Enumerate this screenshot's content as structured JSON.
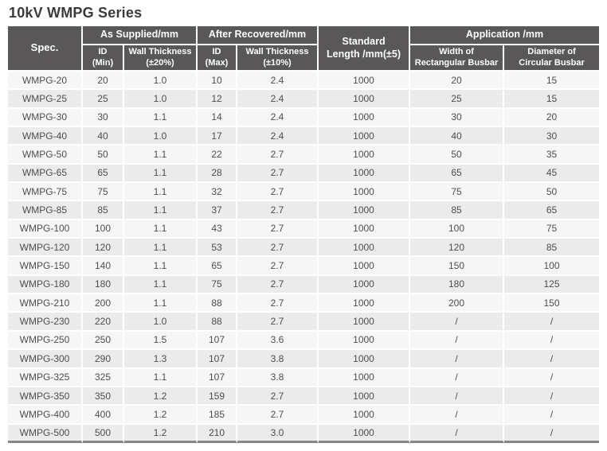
{
  "title": "10kV WMPG Series",
  "colors": {
    "header_bg": "#595757",
    "header_text": "#ffffff",
    "row_light": "#f6f6f6",
    "row_dark": "#ebebec",
    "body_text": "#4e4d4d",
    "bottom_border": "#868686"
  },
  "table": {
    "header": {
      "spec": "Spec.",
      "as_supplied": "As Supplied/mm",
      "after_recovered": "After Recovered/mm",
      "standard_length": "Standard\nLength /mm(±5)",
      "application": "Application /mm",
      "id_min": "ID\n(Min)",
      "wall_thickness_20": "Wall Thickness\n(±20%)",
      "id_max": "ID\n(Max)",
      "wall_thickness_10": "Wall Thickness\n(±10%)",
      "width_rect_busbar": "Width of\nRectangular Busbar",
      "diameter_circ_busbar": "Diameter of\nCircular Busbar"
    },
    "column_keys": [
      "spec",
      "id-min",
      "wall-thickness-20",
      "id-max",
      "wall-thickness-10",
      "standard-length",
      "width-rect-busbar",
      "diameter-circ-busbar"
    ],
    "rows": [
      [
        "WMPG-20",
        "20",
        "1.0",
        "10",
        "2.4",
        "1000",
        "20",
        "15"
      ],
      [
        "WMPG-25",
        "25",
        "1.0",
        "12",
        "2.4",
        "1000",
        "25",
        "15"
      ],
      [
        "WMPG-30",
        "30",
        "1.1",
        "14",
        "2.4",
        "1000",
        "30",
        "20"
      ],
      [
        "WMPG-40",
        "40",
        "1.0",
        "17",
        "2.4",
        "1000",
        "40",
        "30"
      ],
      [
        "WMPG-50",
        "50",
        "1.1",
        "22",
        "2.7",
        "1000",
        "50",
        "35"
      ],
      [
        "WMPG-65",
        "65",
        "1.1",
        "28",
        "2.7",
        "1000",
        "65",
        "45"
      ],
      [
        "WMPG-75",
        "75",
        "1.1",
        "32",
        "2.7",
        "1000",
        "75",
        "50"
      ],
      [
        "WMPG-85",
        "85",
        "1.1",
        "37",
        "2.7",
        "1000",
        "85",
        "65"
      ],
      [
        "WMPG-100",
        "100",
        "1.1",
        "43",
        "2.7",
        "1000",
        "100",
        "75"
      ],
      [
        "WMPG-120",
        "120",
        "1.1",
        "53",
        "2.7",
        "1000",
        "120",
        "85"
      ],
      [
        "WMPG-150",
        "140",
        "1.1",
        "65",
        "2.7",
        "1000",
        "150",
        "100"
      ],
      [
        "WMPG-180",
        "180",
        "1.1",
        "75",
        "2.7",
        "1000",
        "180",
        "125"
      ],
      [
        "WMPG-210",
        "200",
        "1.1",
        "88",
        "2.7",
        "1000",
        "200",
        "150"
      ],
      [
        "WMPG-230",
        "220",
        "1.0",
        "88",
        "2.7",
        "1000",
        "/",
        "/"
      ],
      [
        "WMPG-250",
        "250",
        "1.5",
        "107",
        "3.6",
        "1000",
        "/",
        "/"
      ],
      [
        "WMPG-300",
        "290",
        "1.3",
        "107",
        "3.8",
        "1000",
        "/",
        "/"
      ],
      [
        "WMPG-325",
        "325",
        "1.1",
        "107",
        "3.8",
        "1000",
        "/",
        "/"
      ],
      [
        "WMPG-350",
        "350",
        "1.2",
        "159",
        "2.7",
        "1000",
        "/",
        "/"
      ],
      [
        "WMPG-400",
        "400",
        "1.2",
        "185",
        "2.7",
        "1000",
        "/",
        "/"
      ],
      [
        "WMPG-500",
        "500",
        "1.2",
        "210",
        "3.0",
        "1000",
        "/",
        "/"
      ]
    ]
  }
}
